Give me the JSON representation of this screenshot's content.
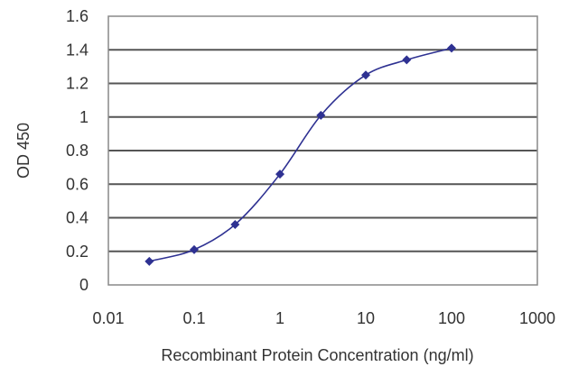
{
  "chart_data": {
    "type": "line",
    "title": "",
    "xlabel": "Recombinant Protein Concentration (ng/ml)",
    "ylabel": "OD 450",
    "x_scale": "log",
    "xlim": [
      0.01,
      1000
    ],
    "ylim": [
      0,
      1.6
    ],
    "x_ticks": [
      0.01,
      0.1,
      1,
      10,
      100,
      1000
    ],
    "x_tick_labels": [
      "0.01",
      "0.1",
      "1",
      "10",
      "100",
      "1000"
    ],
    "y_ticks": [
      0,
      0.2,
      0.4,
      0.6,
      0.8,
      1,
      1.2,
      1.4,
      1.6
    ],
    "y_tick_labels": [
      "0",
      "0.2",
      "0.4",
      "0.6",
      "0.8",
      "1",
      "1.2",
      "1.4",
      "1.6"
    ],
    "grid": "horizontal",
    "legend": "none",
    "series": [
      {
        "color": "#2e3192",
        "marker": "diamond",
        "x": [
          0.03,
          0.1,
          0.3,
          1,
          3,
          10,
          30,
          100
        ],
        "y": [
          0.14,
          0.21,
          0.36,
          0.66,
          1.01,
          1.25,
          1.34,
          1.41
        ]
      }
    ],
    "colors": {
      "series": "#2e3192",
      "gridline": "#555555",
      "frame": "#888888",
      "plot_background": "#ffffff"
    }
  }
}
